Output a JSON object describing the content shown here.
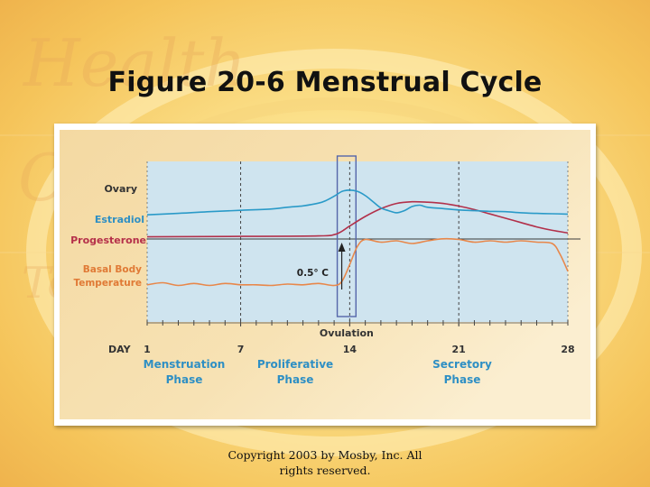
{
  "slide": {
    "title": "Figure 20-6 Menstrual Cycle",
    "copyright": "Copyright 2003 by Mosby, Inc. All rights reserved.",
    "background_watermark": "Health Care Te"
  },
  "colors": {
    "estradiol": "#2a9ac8",
    "progesterone": "#b2304a",
    "temperature": "#e8874a",
    "label_blue": "#2e8fc4",
    "label_red": "#b5304a",
    "label_orange": "#e07a36",
    "plot_bg": "#cfe4ef",
    "panel_bg": "#f3d79e",
    "guide": "#3a3a3a"
  },
  "chart_data": {
    "type": "line",
    "x_label": "DAY",
    "xlim": [
      1,
      28
    ],
    "x_ticks": [
      1,
      7,
      14,
      21,
      28
    ],
    "labels": {
      "ovary": "Ovary",
      "estradiol": "Estradiol",
      "progesterone": "Progesterone",
      "temperature": "Basal Body Temperature",
      "temp_change": "0.5° C",
      "ovulation": "Ovulation"
    },
    "phases": [
      {
        "name": "Menstruation Phase",
        "start": 1,
        "end": 7
      },
      {
        "name": "Proliferative Phase",
        "start": 7,
        "end": 14
      },
      {
        "name": "Secretory Phase",
        "start": 14,
        "end": 28
      }
    ],
    "ovulation_window": [
      13.2,
      14.4
    ],
    "series": [
      {
        "name": "Estradiol",
        "x": [
          1,
          3,
          5,
          7,
          9,
          10,
          11,
          12,
          12.5,
          13,
          13.5,
          14,
          14.5,
          15,
          15.5,
          16,
          16.5,
          17,
          17.5,
          18,
          18.5,
          19,
          20,
          21,
          22,
          23,
          24,
          25,
          26,
          27,
          28
        ],
        "y": [
          0.18,
          0.22,
          0.27,
          0.31,
          0.35,
          0.4,
          0.44,
          0.52,
          0.6,
          0.72,
          0.86,
          0.9,
          0.86,
          0.74,
          0.56,
          0.38,
          0.3,
          0.24,
          0.3,
          0.42,
          0.46,
          0.4,
          0.36,
          0.32,
          0.3,
          0.28,
          0.27,
          0.24,
          0.22,
          0.21,
          0.2
        ]
      },
      {
        "name": "Progesterone",
        "x": [
          1,
          7,
          12,
          13,
          13.5,
          14,
          15,
          16,
          17,
          18,
          19,
          20,
          21,
          22,
          23,
          24,
          25,
          26,
          27,
          28
        ],
        "y": [
          0.05,
          0.06,
          0.07,
          0.1,
          0.18,
          0.3,
          0.52,
          0.7,
          0.82,
          0.86,
          0.85,
          0.82,
          0.76,
          0.68,
          0.58,
          0.48,
          0.38,
          0.28,
          0.2,
          0.14
        ]
      },
      {
        "name": "Basal Body Temperature",
        "x": [
          1,
          2,
          3,
          4,
          5,
          6,
          7,
          8,
          9,
          10,
          11,
          12,
          13,
          13.5,
          14,
          14.5,
          15,
          16,
          17,
          18,
          19,
          20,
          21,
          22,
          23,
          24,
          25,
          26,
          27,
          27.5,
          28
        ],
        "y": [
          0.15,
          0.18,
          0.14,
          0.17,
          0.14,
          0.17,
          0.15,
          0.15,
          0.14,
          0.16,
          0.15,
          0.17,
          0.14,
          0.2,
          0.45,
          0.72,
          0.82,
          0.78,
          0.8,
          0.76,
          0.8,
          0.83,
          0.82,
          0.78,
          0.8,
          0.78,
          0.8,
          0.78,
          0.76,
          0.6,
          0.35
        ]
      }
    ]
  }
}
